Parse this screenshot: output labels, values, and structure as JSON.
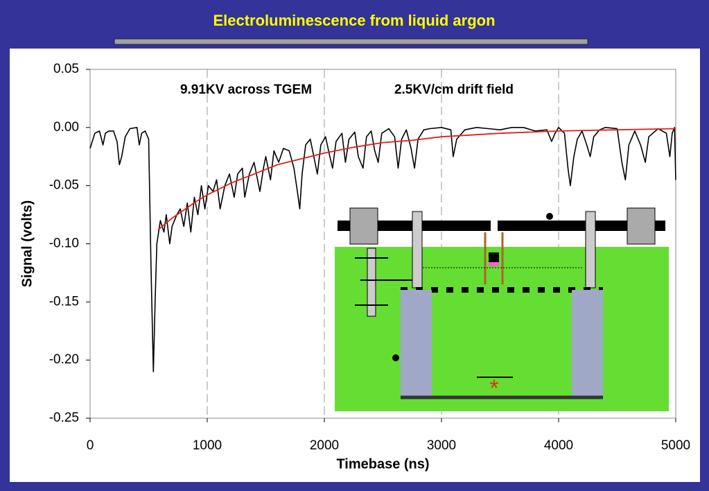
{
  "chart_data": {
    "type": "line",
    "title": "Electroluminescence from liquid argon",
    "annotations": [
      "9.91KV across TGEM",
      "2.5KV/cm drift field"
    ],
    "xlabel": "Timebase (ns)",
    "ylabel": "Signal (volts)",
    "xlim": [
      0,
      5000
    ],
    "ylim": [
      -0.25,
      0.05
    ],
    "xticks": [
      0,
      1000,
      2000,
      3000,
      4000,
      5000
    ],
    "yticks": [
      {
        "value": 0.05,
        "label": "0.05"
      },
      {
        "value": 0,
        "label": "0.00"
      },
      {
        "value": -0.05,
        "label": "-0.05"
      },
      {
        "value": -0.1,
        "label": "-0.10"
      },
      {
        "value": -0.15,
        "label": "-0.15"
      },
      {
        "value": -0.2,
        "label": "-0.20"
      },
      {
        "value": -0.25,
        "label": "-0.25"
      }
    ],
    "grid": true,
    "series": [
      {
        "color": "#000000",
        "x": [
          0,
          40,
          80,
          110,
          130,
          160,
          200,
          230,
          250,
          270,
          300,
          340,
          400,
          420,
          440,
          470,
          500,
          520,
          540,
          555,
          570,
          600,
          630,
          650,
          680,
          700,
          740,
          770,
          800,
          830,
          860,
          890,
          920,
          950,
          980,
          1010,
          1050,
          1080,
          1110,
          1150,
          1190,
          1230,
          1260,
          1300,
          1320,
          1360,
          1400,
          1450,
          1480,
          1500,
          1540,
          1570,
          1610,
          1650,
          1700,
          1740,
          1770,
          1790,
          1810,
          1840,
          1880,
          1900,
          1940,
          1970,
          2010,
          2040,
          2070,
          2100,
          2150,
          2180,
          2210,
          2260,
          2290,
          2330,
          2360,
          2400,
          2430,
          2460,
          2490,
          2550,
          2600,
          2630,
          2660,
          2700,
          2740,
          2770,
          2800,
          2850,
          2900,
          3000,
          3080,
          3100,
          3130,
          3200,
          3300,
          3400,
          3500,
          3600,
          3700,
          3800,
          3900,
          3940,
          3970,
          4000,
          4050,
          4080,
          4100,
          4130,
          4160,
          4200,
          4240,
          4270,
          4300,
          4350,
          4400,
          4500,
          4540,
          4570,
          4600,
          4650,
          4700,
          4740,
          4770,
          4850,
          4920,
          4950,
          4970,
          4990,
          5000
        ],
        "values": [
          -0.018,
          -0.005,
          -0.003,
          -0.015,
          -0.005,
          -0.003,
          -0.003,
          -0.012,
          -0.032,
          -0.025,
          -0.008,
          -0.001,
          0,
          -0.015,
          -0.005,
          -0.003,
          -0.01,
          -0.12,
          -0.21,
          -0.15,
          -0.1,
          -0.08,
          -0.09,
          -0.075,
          -0.1,
          -0.085,
          -0.075,
          -0.07,
          -0.085,
          -0.065,
          -0.09,
          -0.06,
          -0.075,
          -0.05,
          -0.07,
          -0.05,
          -0.055,
          -0.045,
          -0.07,
          -0.05,
          -0.04,
          -0.06,
          -0.04,
          -0.035,
          -0.06,
          -0.04,
          -0.03,
          -0.055,
          -0.035,
          -0.025,
          -0.045,
          -0.02,
          -0.03,
          -0.018,
          -0.02,
          -0.035,
          -0.055,
          -0.07,
          -0.04,
          -0.015,
          -0.01,
          -0.02,
          -0.04,
          -0.015,
          -0.008,
          -0.022,
          -0.035,
          -0.012,
          -0.005,
          -0.03,
          -0.01,
          -0.004,
          -0.025,
          -0.035,
          -0.008,
          -0.003,
          -0.02,
          -0.03,
          -0.005,
          -0.001,
          -0.008,
          -0.035,
          -0.01,
          -0.002,
          -0.018,
          -0.035,
          -0.01,
          -0.002,
          -0.001,
          0,
          -0.002,
          -0.025,
          -0.01,
          -0.002,
          0,
          -0.001,
          -0.002,
          0,
          0,
          -0.003,
          -0.002,
          -0.012,
          -0.005,
          0,
          -0.005,
          -0.035,
          -0.05,
          -0.025,
          -0.01,
          -0.003,
          -0.015,
          -0.025,
          -0.008,
          -0.002,
          0,
          -0.001,
          -0.03,
          -0.045,
          -0.015,
          -0.003,
          -0.015,
          -0.03,
          -0.008,
          -0.001,
          -0.005,
          -0.025,
          -0.005,
          0,
          -0.045
        ]
      },
      {
        "color": "#e02020",
        "x": [
          580,
          700,
          800,
          900,
          1000,
          1200,
          1400,
          1600,
          1800,
          2000,
          2250,
          2500,
          2750,
          3000,
          3500,
          4000,
          4500,
          5000
        ],
        "values": [
          -0.088,
          -0.078,
          -0.071,
          -0.064,
          -0.058,
          -0.048,
          -0.04,
          -0.032,
          -0.027,
          -0.022,
          -0.017,
          -0.013,
          -0.011,
          -0.008,
          -0.005,
          -0.003,
          -0.002,
          -0.001
        ]
      }
    ]
  }
}
